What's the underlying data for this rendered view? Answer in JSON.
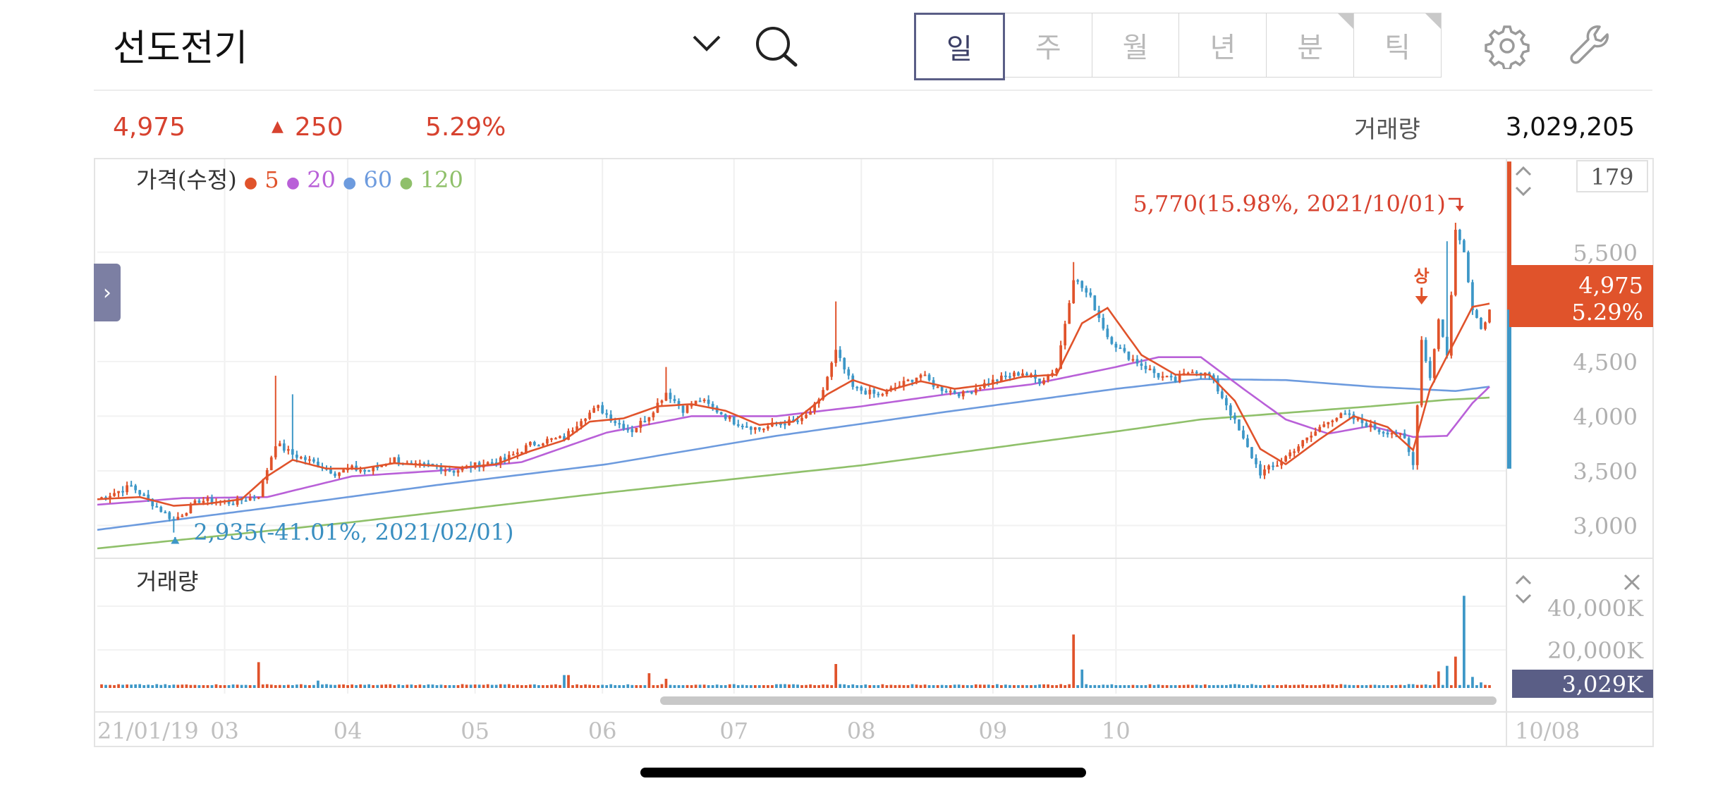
{
  "header": {
    "stock_name": "선도전기",
    "periods": [
      {
        "label": "일",
        "active": true,
        "corner": false
      },
      {
        "label": "주",
        "active": false,
        "corner": false
      },
      {
        "label": "월",
        "active": false,
        "corner": false
      },
      {
        "label": "년",
        "active": false,
        "corner": false
      },
      {
        "label": "분",
        "active": false,
        "corner": true
      },
      {
        "label": "틱",
        "active": false,
        "corner": true
      }
    ],
    "icons": [
      "chevron-down-icon",
      "search-icon",
      "gear-icon",
      "wrench-icon"
    ]
  },
  "summary": {
    "price": "4,975",
    "change_arrow": "▲",
    "change": "250",
    "change_rate": "5.29%",
    "volume_label": "거래량",
    "volume": "3,029,205"
  },
  "colors": {
    "up": "#e0532b",
    "down": "#3d97c7",
    "ma5": "#e0532b",
    "ma20": "#b960d8",
    "ma60": "#6d9bde",
    "ma120": "#8fc06a",
    "accent": "#5a5e86",
    "text_red": "#d7422f"
  },
  "chart_data": {
    "type": "candlestick",
    "legend": {
      "title": "가격(수정)",
      "items": [
        {
          "label": "5",
          "color": "#e0532b"
        },
        {
          "label": "20",
          "color": "#b960d8"
        },
        {
          "label": "60",
          "color": "#6d9bde"
        },
        {
          "label": "120",
          "color": "#8fc06a"
        }
      ]
    },
    "price_axis": {
      "ticks": [
        "5,500",
        "4,500",
        "4,000",
        "3,500",
        "3,000"
      ],
      "range": [
        2700,
        6350
      ],
      "top_box": "179"
    },
    "x_axis": {
      "labels": [
        "21/01/19",
        "03",
        "04",
        "05",
        "06",
        "07",
        "08",
        "09",
        "10"
      ],
      "right_label": "10/08"
    },
    "current": {
      "price": "4,975",
      "rate": "5.29%",
      "value": 4975
    },
    "annotations": {
      "high": "5,770(15.98%, 2021/10/01)",
      "low": "2,935(-41.01%, 2021/02/01)",
      "limit_up": "상"
    },
    "price_anchors": [
      [
        0,
        3240
      ],
      [
        8,
        3360
      ],
      [
        14,
        3170
      ],
      [
        18,
        3050
      ],
      [
        24,
        3230
      ],
      [
        32,
        3210
      ],
      [
        38,
        3280
      ],
      [
        42,
        3750
      ],
      [
        46,
        3650
      ],
      [
        52,
        3560
      ],
      [
        56,
        3480
      ],
      [
        60,
        3520
      ],
      [
        64,
        3500
      ],
      [
        70,
        3610
      ],
      [
        74,
        3540
      ],
      [
        78,
        3550
      ],
      [
        84,
        3500
      ],
      [
        90,
        3560
      ],
      [
        96,
        3600
      ],
      [
        102,
        3740
      ],
      [
        106,
        3780
      ],
      [
        110,
        3800
      ],
      [
        114,
        3980
      ],
      [
        118,
        4080
      ],
      [
        122,
        3950
      ],
      [
        126,
        3870
      ],
      [
        130,
        4010
      ],
      [
        134,
        4220
      ],
      [
        138,
        4060
      ],
      [
        142,
        4150
      ],
      [
        146,
        4050
      ],
      [
        150,
        3950
      ],
      [
        156,
        3880
      ],
      [
        160,
        3930
      ],
      [
        166,
        3960
      ],
      [
        170,
        4130
      ],
      [
        174,
        4590
      ],
      [
        178,
        4260
      ],
      [
        184,
        4190
      ],
      [
        190,
        4300
      ],
      [
        194,
        4380
      ],
      [
        198,
        4260
      ],
      [
        204,
        4200
      ],
      [
        208,
        4280
      ],
      [
        214,
        4360
      ],
      [
        218,
        4400
      ],
      [
        222,
        4320
      ],
      [
        226,
        4440
      ],
      [
        230,
        5270
      ],
      [
        234,
        5080
      ],
      [
        238,
        4730
      ],
      [
        242,
        4570
      ],
      [
        246,
        4470
      ],
      [
        250,
        4370
      ],
      [
        254,
        4320
      ],
      [
        258,
        4430
      ],
      [
        262,
        4370
      ],
      [
        266,
        4110
      ],
      [
        270,
        3780
      ],
      [
        274,
        3480
      ],
      [
        278,
        3560
      ],
      [
        282,
        3700
      ],
      [
        286,
        3820
      ],
      [
        290,
        3970
      ],
      [
        294,
        4010
      ],
      [
        298,
        3940
      ],
      [
        302,
        3870
      ],
      [
        306,
        3850
      ],
      [
        308,
        3780
      ],
      [
        310,
        3550
      ],
      [
        312,
        4700
      ],
      [
        314,
        4350
      ],
      [
        316,
        4900
      ],
      [
        318,
        4550
      ],
      [
        320,
        5700
      ],
      [
        322,
        5500
      ],
      [
        324,
        5000
      ],
      [
        326,
        4800
      ],
      [
        328,
        4975
      ]
    ],
    "ma5": [
      [
        0,
        3240
      ],
      [
        10,
        3260
      ],
      [
        18,
        3180
      ],
      [
        26,
        3200
      ],
      [
        34,
        3240
      ],
      [
        40,
        3450
      ],
      [
        46,
        3600
      ],
      [
        54,
        3520
      ],
      [
        62,
        3520
      ],
      [
        70,
        3570
      ],
      [
        78,
        3550
      ],
      [
        86,
        3530
      ],
      [
        94,
        3560
      ],
      [
        102,
        3680
      ],
      [
        110,
        3780
      ],
      [
        116,
        3950
      ],
      [
        124,
        3980
      ],
      [
        132,
        4090
      ],
      [
        140,
        4110
      ],
      [
        148,
        4050
      ],
      [
        156,
        3920
      ],
      [
        164,
        3950
      ],
      [
        172,
        4200
      ],
      [
        178,
        4330
      ],
      [
        186,
        4230
      ],
      [
        194,
        4320
      ],
      [
        202,
        4250
      ],
      [
        210,
        4290
      ],
      [
        218,
        4360
      ],
      [
        226,
        4380
      ],
      [
        232,
        4850
      ],
      [
        238,
        4990
      ],
      [
        246,
        4560
      ],
      [
        254,
        4380
      ],
      [
        262,
        4380
      ],
      [
        268,
        4140
      ],
      [
        274,
        3700
      ],
      [
        280,
        3560
      ],
      [
        288,
        3790
      ],
      [
        296,
        4000
      ],
      [
        304,
        3900
      ],
      [
        310,
        3690
      ],
      [
        314,
        4250
      ],
      [
        320,
        4700
      ],
      [
        324,
        5000
      ],
      [
        328,
        5030
      ]
    ],
    "ma20": [
      [
        0,
        3190
      ],
      [
        20,
        3250
      ],
      [
        40,
        3260
      ],
      [
        60,
        3450
      ],
      [
        80,
        3500
      ],
      [
        100,
        3580
      ],
      [
        120,
        3850
      ],
      [
        140,
        4000
      ],
      [
        160,
        4000
      ],
      [
        180,
        4090
      ],
      [
        200,
        4200
      ],
      [
        220,
        4290
      ],
      [
        240,
        4450
      ],
      [
        250,
        4540
      ],
      [
        260,
        4540
      ],
      [
        270,
        4250
      ],
      [
        280,
        3970
      ],
      [
        290,
        3840
      ],
      [
        300,
        3910
      ],
      [
        310,
        3810
      ],
      [
        318,
        3820
      ],
      [
        324,
        4120
      ],
      [
        328,
        4270
      ]
    ],
    "ma60": [
      [
        0,
        2960
      ],
      [
        40,
        3160
      ],
      [
        80,
        3370
      ],
      [
        120,
        3560
      ],
      [
        160,
        3820
      ],
      [
        200,
        4040
      ],
      [
        240,
        4250
      ],
      [
        260,
        4340
      ],
      [
        280,
        4330
      ],
      [
        300,
        4270
      ],
      [
        320,
        4230
      ],
      [
        328,
        4270
      ]
    ],
    "ma120": [
      [
        0,
        2790
      ],
      [
        60,
        3030
      ],
      [
        120,
        3300
      ],
      [
        180,
        3550
      ],
      [
        240,
        3860
      ],
      [
        260,
        3970
      ],
      [
        280,
        4030
      ],
      [
        300,
        4090
      ],
      [
        318,
        4150
      ],
      [
        328,
        4170
      ]
    ],
    "volume_panel": {
      "label": "거래량",
      "ticks": [
        "40,000K",
        "20,000K"
      ],
      "current_box": "3,029K",
      "max": 52000,
      "spikes": [
        [
          38,
          14000
        ],
        [
          52,
          4000
        ],
        [
          110,
          7000
        ],
        [
          111,
          7000
        ],
        [
          130,
          8000
        ],
        [
          134,
          5000
        ],
        [
          174,
          13000
        ],
        [
          230,
          29000
        ],
        [
          232,
          10000
        ],
        [
          316,
          9000
        ],
        [
          318,
          12000
        ],
        [
          320,
          17000
        ],
        [
          322,
          50000
        ],
        [
          324,
          6000
        ],
        [
          326,
          3029
        ]
      ]
    }
  }
}
